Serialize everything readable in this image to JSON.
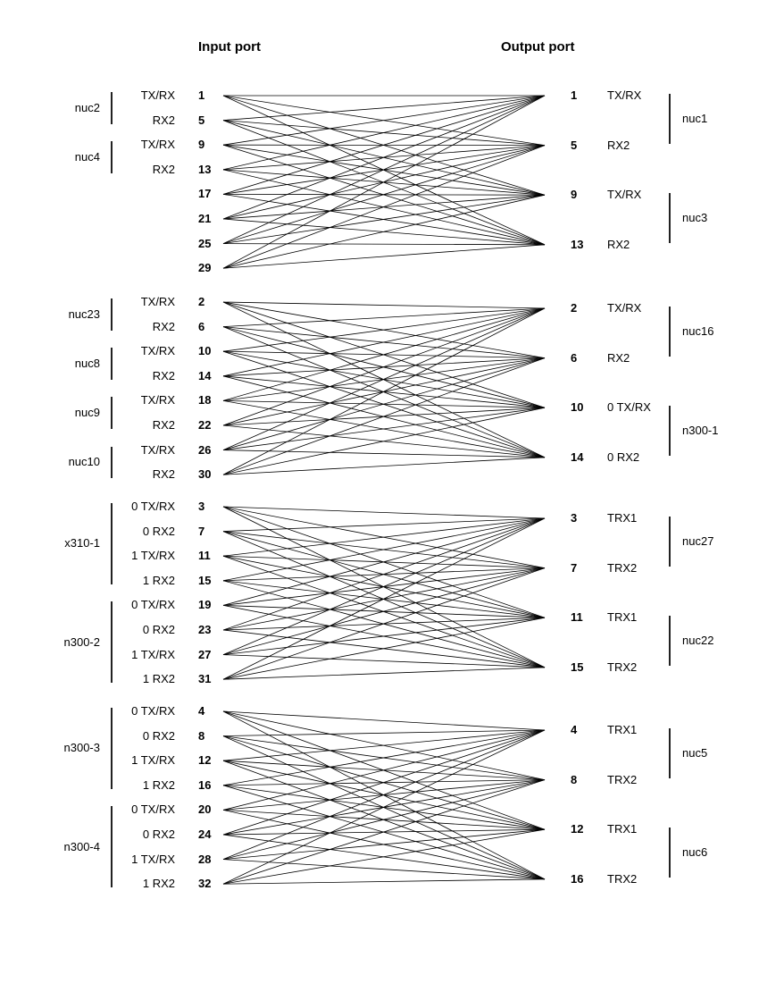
{
  "headers": {
    "input": "Input port",
    "output": "Output port"
  },
  "groups": [
    {
      "inputs": [
        [
          "1",
          "TX/RX"
        ],
        [
          "5",
          "RX2"
        ],
        [
          "9",
          "TX/RX"
        ],
        [
          "13",
          "RX2"
        ],
        [
          "17",
          ""
        ],
        [
          "21",
          ""
        ],
        [
          "25",
          ""
        ],
        [
          "29",
          ""
        ]
      ],
      "input_devices": [
        {
          "name": "nuc2",
          "from": 0,
          "to": 1
        },
        {
          "name": "nuc4",
          "from": 2,
          "to": 3
        }
      ],
      "outputs": [
        [
          "1",
          "TX/RX"
        ],
        [
          "5",
          "RX2"
        ],
        [
          "9",
          "TX/RX"
        ],
        [
          "13",
          "RX2"
        ]
      ],
      "output_devices": [
        {
          "name": "nuc1",
          "from": 0,
          "to": 1
        },
        {
          "name": "nuc3",
          "from": 2,
          "to": 3
        }
      ]
    },
    {
      "inputs": [
        [
          "2",
          "TX/RX"
        ],
        [
          "6",
          "RX2"
        ],
        [
          "10",
          "TX/RX"
        ],
        [
          "14",
          "RX2"
        ],
        [
          "18",
          "TX/RX"
        ],
        [
          "22",
          "RX2"
        ],
        [
          "26",
          "TX/RX"
        ],
        [
          "30",
          "RX2"
        ]
      ],
      "input_devices": [
        {
          "name": "nuc23",
          "from": 0,
          "to": 1
        },
        {
          "name": "nuc8",
          "from": 2,
          "to": 3
        },
        {
          "name": "nuc9",
          "from": 4,
          "to": 5
        },
        {
          "name": "nuc10",
          "from": 6,
          "to": 7
        }
      ],
      "outputs": [
        [
          "2",
          "TX/RX"
        ],
        [
          "6",
          "RX2"
        ],
        [
          "10",
          "0 TX/RX"
        ],
        [
          "14",
          "0 RX2"
        ]
      ],
      "output_devices": [
        {
          "name": "nuc16",
          "from": 0,
          "to": 1
        },
        {
          "name": "n300-1",
          "from": 2,
          "to": 3
        }
      ]
    },
    {
      "inputs": [
        [
          "3",
          "0 TX/RX"
        ],
        [
          "7",
          "0 RX2"
        ],
        [
          "11",
          "1 TX/RX"
        ],
        [
          "15",
          "1 RX2"
        ],
        [
          "19",
          "0 TX/RX"
        ],
        [
          "23",
          "0 RX2"
        ],
        [
          "27",
          "1 TX/RX"
        ],
        [
          "31",
          "1 RX2"
        ]
      ],
      "input_devices": [
        {
          "name": "x310-1",
          "from": 0,
          "to": 3
        },
        {
          "name": "n300-2",
          "from": 4,
          "to": 7
        }
      ],
      "outputs": [
        [
          "3",
          "TRX1"
        ],
        [
          "7",
          "TRX2"
        ],
        [
          "11",
          "TRX1"
        ],
        [
          "15",
          "TRX2"
        ]
      ],
      "output_devices": [
        {
          "name": "nuc27",
          "from": 0,
          "to": 1
        },
        {
          "name": "nuc22",
          "from": 2,
          "to": 3
        }
      ]
    },
    {
      "inputs": [
        [
          "4",
          "0 TX/RX"
        ],
        [
          "8",
          "0 RX2"
        ],
        [
          "12",
          "1 TX/RX"
        ],
        [
          "16",
          "1 RX2"
        ],
        [
          "20",
          "0 TX/RX"
        ],
        [
          "24",
          "0 RX2"
        ],
        [
          "28",
          "1 TX/RX"
        ],
        [
          "32",
          "1 RX2"
        ]
      ],
      "input_devices": [
        {
          "name": "n300-3",
          "from": 0,
          "to": 3
        },
        {
          "name": "n300-4",
          "from": 4,
          "to": 7
        }
      ],
      "outputs": [
        [
          "4",
          "TRX1"
        ],
        [
          "8",
          "TRX2"
        ],
        [
          "12",
          "TRX1"
        ],
        [
          "16",
          "TRX2"
        ]
      ],
      "output_devices": [
        {
          "name": "nuc5",
          "from": 0,
          "to": 1
        },
        {
          "name": "nuc6",
          "from": 2,
          "to": 3
        }
      ]
    }
  ]
}
